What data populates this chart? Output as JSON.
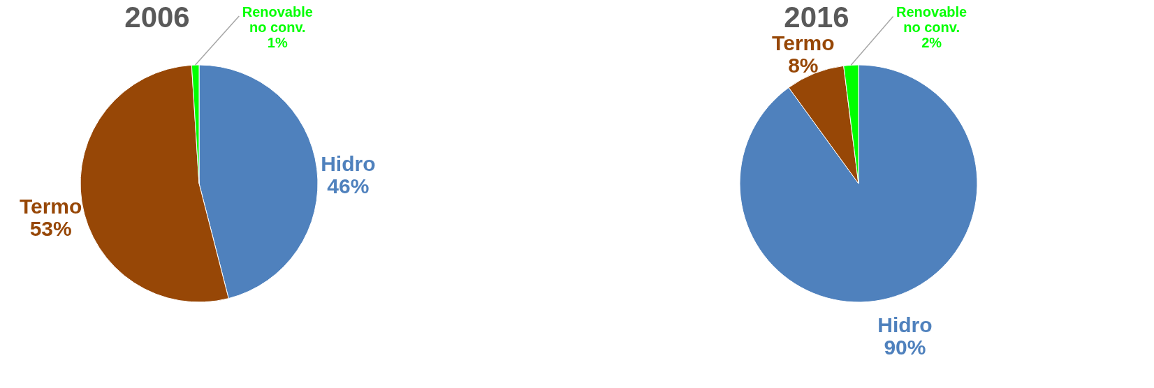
{
  "chart_data": [
    {
      "type": "pie",
      "title": "2006",
      "categories": [
        "Hidro",
        "Termo",
        "Renovable no conv."
      ],
      "values": [
        46,
        53,
        1
      ],
      "colors": [
        "#4f81bd",
        "#974706",
        "#00ff00"
      ],
      "value_labels": [
        "46%",
        "53%",
        "1%"
      ]
    },
    {
      "type": "pie",
      "title": "2016",
      "categories": [
        "Hidro",
        "Termo",
        "Renovable no conv."
      ],
      "values": [
        90,
        8,
        2
      ],
      "colors": [
        "#4f81bd",
        "#974706",
        "#00ff00"
      ],
      "value_labels": [
        "90%",
        "8%",
        "2%"
      ]
    }
  ]
}
